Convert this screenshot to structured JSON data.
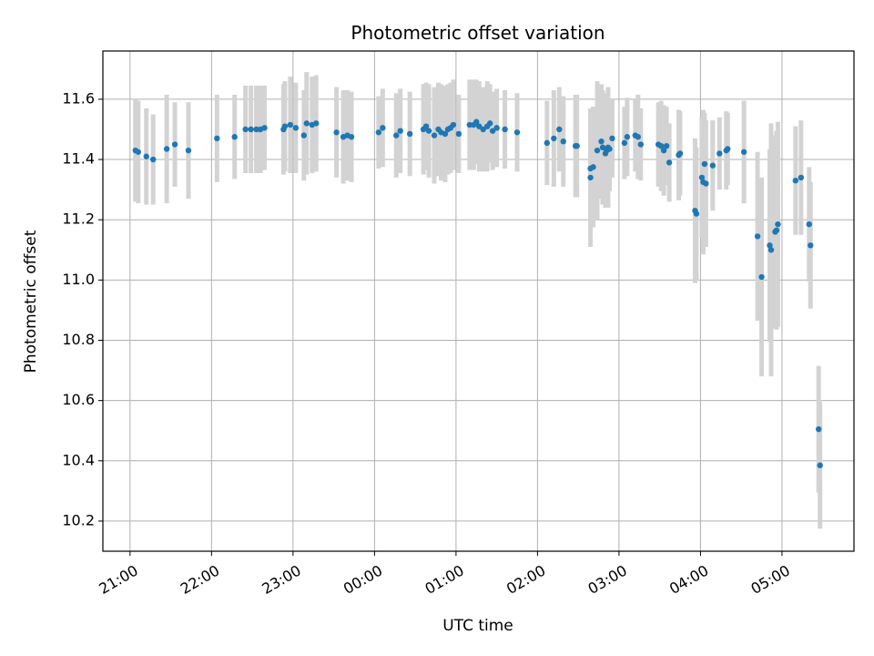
{
  "chart_data": {
    "type": "scatter",
    "title": "Photometric offset variation",
    "xlabel": "UTC time",
    "ylabel": "Photometric offset",
    "x_axis": "UTC time of day, continuing past midnight (hours > 24 are the following day)",
    "xlim": [
      "20:40",
      "05:53"
    ],
    "ylim": [
      10.1,
      11.76
    ],
    "x_ticks": [
      "21:00",
      "22:00",
      "23:00",
      "00:00",
      "01:00",
      "02:00",
      "03:00",
      "04:00",
      "05:00"
    ],
    "y_ticks": [
      "10.2",
      "10.4",
      "10.6",
      "10.8",
      "11.0",
      "11.2",
      "11.4",
      "11.6"
    ],
    "grid": true,
    "marker_color": "#1f77b4",
    "errorbar_color": "#d3d3d3",
    "points": [
      {
        "t": "21:04",
        "y": 11.43,
        "err": 0.17
      },
      {
        "t": "21:06",
        "y": 11.425,
        "err": 0.17
      },
      {
        "t": "21:12",
        "y": 11.41,
        "err": 0.16
      },
      {
        "t": "21:17",
        "y": 11.4,
        "err": 0.15
      },
      {
        "t": "21:27",
        "y": 11.435,
        "err": 0.18
      },
      {
        "t": "21:33",
        "y": 11.45,
        "err": 0.14
      },
      {
        "t": "21:43",
        "y": 11.43,
        "err": 0.16
      },
      {
        "t": "22:04",
        "y": 11.47,
        "err": 0.145
      },
      {
        "t": "22:17",
        "y": 11.475,
        "err": 0.14
      },
      {
        "t": "22:25",
        "y": 11.5,
        "err": 0.145
      },
      {
        "t": "22:29",
        "y": 11.5,
        "err": 0.145
      },
      {
        "t": "22:33",
        "y": 11.5,
        "err": 0.145
      },
      {
        "t": "22:36",
        "y": 11.5,
        "err": 0.145
      },
      {
        "t": "22:39",
        "y": 11.505,
        "err": 0.14
      },
      {
        "t": "22:53",
        "y": 11.5,
        "err": 0.15
      },
      {
        "t": "22:54",
        "y": 11.51,
        "err": 0.15
      },
      {
        "t": "22:58",
        "y": 11.515,
        "err": 0.16
      },
      {
        "t": "23:02",
        "y": 11.505,
        "err": 0.15
      },
      {
        "t": "23:08",
        "y": 11.48,
        "err": 0.15
      },
      {
        "t": "23:10",
        "y": 11.52,
        "err": 0.17
      },
      {
        "t": "23:14",
        "y": 11.515,
        "err": 0.16
      },
      {
        "t": "23:17",
        "y": 11.52,
        "err": 0.16
      },
      {
        "t": "23:32",
        "y": 11.49,
        "err": 0.15
      },
      {
        "t": "23:37",
        "y": 11.475,
        "err": 0.155
      },
      {
        "t": "23:40",
        "y": 11.48,
        "err": 0.15
      },
      {
        "t": "23:43",
        "y": 11.475,
        "err": 0.15
      },
      {
        "t": "24:03",
        "y": 11.49,
        "err": 0.12
      },
      {
        "t": "24:06",
        "y": 11.505,
        "err": 0.13
      },
      {
        "t": "24:16",
        "y": 11.48,
        "err": 0.14
      },
      {
        "t": "24:19",
        "y": 11.495,
        "err": 0.14
      },
      {
        "t": "24:26",
        "y": 11.485,
        "err": 0.14
      },
      {
        "t": "24:36",
        "y": 11.5,
        "err": 0.15
      },
      {
        "t": "24:38",
        "y": 11.51,
        "err": 0.145
      },
      {
        "t": "24:40",
        "y": 11.495,
        "err": 0.155
      },
      {
        "t": "24:44",
        "y": 11.48,
        "err": 0.16
      },
      {
        "t": "24:47",
        "y": 11.5,
        "err": 0.155
      },
      {
        "t": "24:49",
        "y": 11.49,
        "err": 0.16
      },
      {
        "t": "24:52",
        "y": 11.485,
        "err": 0.16
      },
      {
        "t": "24:54",
        "y": 11.5,
        "err": 0.15
      },
      {
        "t": "24:56",
        "y": 11.505,
        "err": 0.15
      },
      {
        "t": "24:58",
        "y": 11.515,
        "err": 0.15
      },
      {
        "t": "25:02",
        "y": 11.485,
        "err": 0.13
      },
      {
        "t": "25:10",
        "y": 11.515,
        "err": 0.15
      },
      {
        "t": "25:13",
        "y": 11.515,
        "err": 0.15
      },
      {
        "t": "25:15",
        "y": 11.525,
        "err": 0.14
      },
      {
        "t": "25:17",
        "y": 11.51,
        "err": 0.15
      },
      {
        "t": "25:20",
        "y": 11.5,
        "err": 0.14
      },
      {
        "t": "25:23",
        "y": 11.51,
        "err": 0.15
      },
      {
        "t": "25:25",
        "y": 11.52,
        "err": 0.13
      },
      {
        "t": "25:27",
        "y": 11.495,
        "err": 0.13
      },
      {
        "t": "25:30",
        "y": 11.505,
        "err": 0.13
      },
      {
        "t": "25:36",
        "y": 11.5,
        "err": 0.13
      },
      {
        "t": "25:45",
        "y": 11.49,
        "err": 0.13
      },
      {
        "t": "26:07",
        "y": 11.455,
        "err": 0.14
      },
      {
        "t": "26:12",
        "y": 11.47,
        "err": 0.16
      },
      {
        "t": "26:16",
        "y": 11.5,
        "err": 0.14
      },
      {
        "t": "26:19",
        "y": 11.46,
        "err": 0.15
      },
      {
        "t": "26:28",
        "y": 11.445,
        "err": 0.17
      },
      {
        "t": "26:29",
        "y": 11.445,
        "err": 0.17
      },
      {
        "t": "26:39",
        "y": 11.37,
        "err": 0.17
      },
      {
        "t": "26:39",
        "y": 11.34,
        "err": 0.23
      },
      {
        "t": "26:41",
        "y": 11.375,
        "err": 0.2
      },
      {
        "t": "26:44",
        "y": 11.43,
        "err": 0.23
      },
      {
        "t": "26:47",
        "y": 11.46,
        "err": 0.19
      },
      {
        "t": "26:48",
        "y": 11.44,
        "err": 0.19
      },
      {
        "t": "26:50",
        "y": 11.42,
        "err": 0.18
      },
      {
        "t": "26:51",
        "y": 11.43,
        "err": 0.19
      },
      {
        "t": "26:52",
        "y": 11.44,
        "err": 0.2
      },
      {
        "t": "26:53",
        "y": 11.435,
        "err": 0.14
      },
      {
        "t": "26:55",
        "y": 11.47,
        "err": 0.13
      },
      {
        "t": "27:04",
        "y": 11.455,
        "err": 0.12
      },
      {
        "t": "27:06",
        "y": 11.475,
        "err": 0.13
      },
      {
        "t": "27:12",
        "y": 11.48,
        "err": 0.12
      },
      {
        "t": "27:14",
        "y": 11.475,
        "err": 0.14
      },
      {
        "t": "27:16",
        "y": 11.45,
        "err": 0.12
      },
      {
        "t": "27:29",
        "y": 11.45,
        "err": 0.14
      },
      {
        "t": "27:31",
        "y": 11.445,
        "err": 0.15
      },
      {
        "t": "27:33",
        "y": 11.43,
        "err": 0.15
      },
      {
        "t": "27:35",
        "y": 11.445,
        "err": 0.13
      },
      {
        "t": "27:37",
        "y": 11.39,
        "err": 0.13
      },
      {
        "t": "27:44",
        "y": 11.415,
        "err": 0.15
      },
      {
        "t": "27:45",
        "y": 11.42,
        "err": 0.14
      },
      {
        "t": "27:56",
        "y": 11.23,
        "err": 0.24
      },
      {
        "t": "27:57",
        "y": 11.22,
        "err": 0.22
      },
      {
        "t": "28:01",
        "y": 11.34,
        "err": 0.2
      },
      {
        "t": "28:02",
        "y": 11.325,
        "err": 0.24
      },
      {
        "t": "28:03",
        "y": 11.385,
        "err": 0.17
      },
      {
        "t": "28:04",
        "y": 11.32,
        "err": 0.21
      },
      {
        "t": "28:09",
        "y": 11.38,
        "err": 0.15
      },
      {
        "t": "28:14",
        "y": 11.42,
        "err": 0.12
      },
      {
        "t": "28:19",
        "y": 11.43,
        "err": 0.13
      },
      {
        "t": "28:20",
        "y": 11.435,
        "err": 0.12
      },
      {
        "t": "28:32",
        "y": 11.425,
        "err": 0.17
      },
      {
        "t": "28:42",
        "y": 11.145,
        "err": 0.28
      },
      {
        "t": "28:45",
        "y": 11.01,
        "err": 0.33
      },
      {
        "t": "28:51",
        "y": 11.115,
        "err": 0.32
      },
      {
        "t": "28:52",
        "y": 11.1,
        "err": 0.42
      },
      {
        "t": "28:55",
        "y": 11.16,
        "err": 0.32
      },
      {
        "t": "28:56",
        "y": 11.165,
        "err": 0.33
      },
      {
        "t": "28:57",
        "y": 11.185,
        "err": 0.34
      },
      {
        "t": "29:10",
        "y": 11.33,
        "err": 0.18
      },
      {
        "t": "29:14",
        "y": 11.34,
        "err": 0.19
      },
      {
        "t": "29:20",
        "y": 11.185,
        "err": 0.19
      },
      {
        "t": "29:21",
        "y": 11.115,
        "err": 0.21
      },
      {
        "t": "29:27",
        "y": 10.505,
        "err": 0.21
      },
      {
        "t": "29:28",
        "y": 10.385,
        "err": 0.21
      }
    ]
  }
}
